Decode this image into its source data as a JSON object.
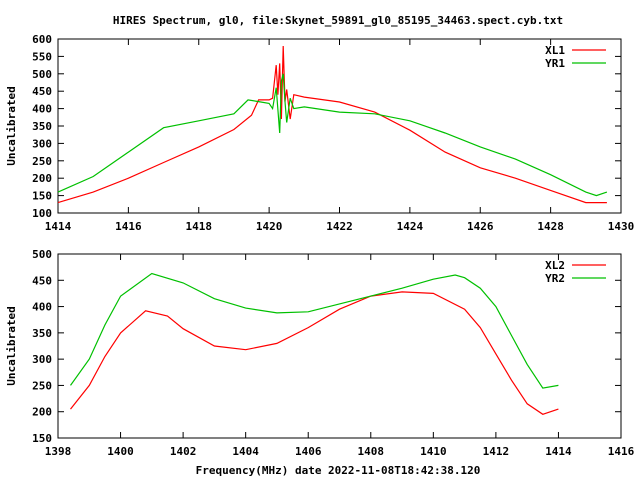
{
  "title": "HIRES Spectrum, gl0, file:Skynet_59891_gl0_85195_34463.spect.cyb.txt",
  "footer": "Frequency(MHz) date 2022-11-08T18:42:38.120",
  "chart_data": [
    {
      "type": "line",
      "ylabel": "Uncalibrated",
      "xlim": [
        1414,
        1430
      ],
      "ylim": [
        100,
        600
      ],
      "xticks": [
        1414,
        1416,
        1418,
        1420,
        1422,
        1424,
        1426,
        1428,
        1430
      ],
      "yticks": [
        100,
        150,
        200,
        250,
        300,
        350,
        400,
        450,
        500,
        550,
        600
      ],
      "legend_position": "top-right",
      "series": [
        {
          "name": "XL1",
          "color": "#ff0000",
          "x": [
            1414,
            1415,
            1416,
            1417,
            1418,
            1419,
            1419.5,
            1419.7,
            1420,
            1420.1,
            1420.2,
            1420.25,
            1420.3,
            1420.35,
            1420.4,
            1420.45,
            1420.5,
            1420.6,
            1420.7,
            1421,
            1422,
            1423,
            1424,
            1425,
            1426,
            1427,
            1428,
            1429,
            1429.6
          ],
          "y": [
            130,
            160,
            200,
            245,
            290,
            340,
            381,
            425,
            425,
            430,
            525,
            440,
            530,
            370,
            580,
            420,
            455,
            370,
            440,
            433,
            419,
            390,
            338,
            275,
            230,
            200,
            165,
            130,
            130
          ]
        },
        {
          "name": "YR1",
          "color": "#00c000",
          "x": [
            1414,
            1415,
            1416,
            1417,
            1418,
            1419,
            1419.4,
            1419.7,
            1420,
            1420.1,
            1420.2,
            1420.3,
            1420.35,
            1420.4,
            1420.45,
            1420.5,
            1420.6,
            1420.7,
            1421,
            1422,
            1423,
            1424,
            1425,
            1426,
            1427,
            1428,
            1429,
            1429.3,
            1429.6
          ],
          "y": [
            160,
            205,
            275,
            345,
            365,
            385,
            425,
            420,
            415,
            400,
            460,
            330,
            480,
            500,
            420,
            360,
            430,
            400,
            405,
            390,
            385,
            365,
            330,
            290,
            255,
            210,
            160,
            150,
            160
          ]
        }
      ]
    },
    {
      "type": "line",
      "ylabel": "Uncalibrated",
      "xlim": [
        1398,
        1416
      ],
      "ylim": [
        150,
        500
      ],
      "xticks": [
        1398,
        1400,
        1402,
        1404,
        1406,
        1408,
        1410,
        1412,
        1414,
        1416
      ],
      "yticks": [
        150,
        200,
        250,
        300,
        350,
        400,
        450,
        500
      ],
      "legend_position": "top-right",
      "series": [
        {
          "name": "XL2",
          "color": "#ff0000",
          "x": [
            1398.4,
            1399,
            1399.5,
            1400,
            1400.8,
            1401.5,
            1402,
            1403,
            1404,
            1405,
            1406,
            1407,
            1408,
            1409,
            1410,
            1411,
            1411.5,
            1412,
            1412.5,
            1413,
            1413.5,
            1414
          ],
          "y": [
            205,
            250,
            305,
            350,
            392,
            382,
            358,
            325,
            318,
            330,
            360,
            395,
            420,
            428,
            425,
            395,
            360,
            310,
            260,
            215,
            195,
            205
          ]
        },
        {
          "name": "YR2",
          "color": "#00c000",
          "x": [
            1398.4,
            1399,
            1399.5,
            1400,
            1401,
            1402,
            1403,
            1404,
            1405,
            1406,
            1407,
            1408,
            1409,
            1410,
            1410.7,
            1411,
            1411.5,
            1412,
            1412.5,
            1413,
            1413.5,
            1414
          ],
          "y": [
            250,
            300,
            365,
            420,
            463,
            445,
            415,
            397,
            388,
            390,
            405,
            420,
            435,
            452,
            460,
            455,
            435,
            400,
            345,
            290,
            245,
            250
          ]
        }
      ]
    }
  ]
}
